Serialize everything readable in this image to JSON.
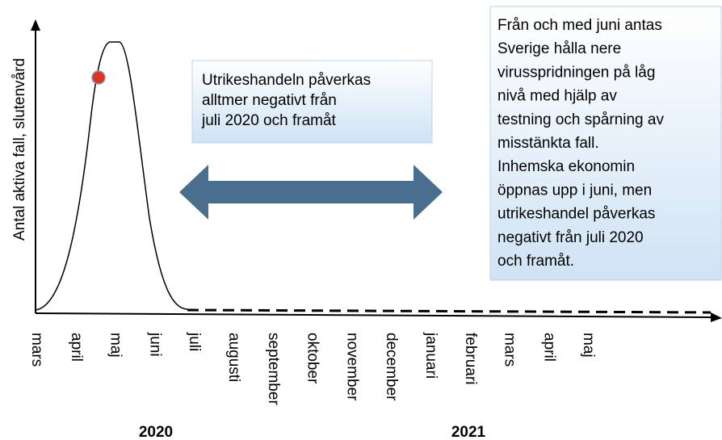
{
  "y_axis_label": "Antal aktiva fall, slutenvård",
  "months": [
    "mars",
    "april",
    "maj",
    "juni",
    "juli",
    "augusti",
    "september",
    "oktober",
    "november",
    "december",
    "januari",
    "februari",
    "mars",
    "april",
    "maj"
  ],
  "years": [
    "2020",
    "2021"
  ],
  "box_left": {
    "lines": [
      "Utrikeshandeln påverkas",
      "alltmer negativt från",
      "juli 2020 och framåt"
    ]
  },
  "box_right": {
    "lines": [
      "Från och med juni antas",
      "Sverige hålla nere",
      "virusspridningen på låg",
      "nivå med hjälp av",
      "testning och spårning av",
      "misstänkta fall.",
      "Inhemska ekonomin",
      "öppnas upp i juni, men",
      "utrikeshandel påverkas",
      "negativt från juli 2020",
      "och framåt."
    ]
  }
}
